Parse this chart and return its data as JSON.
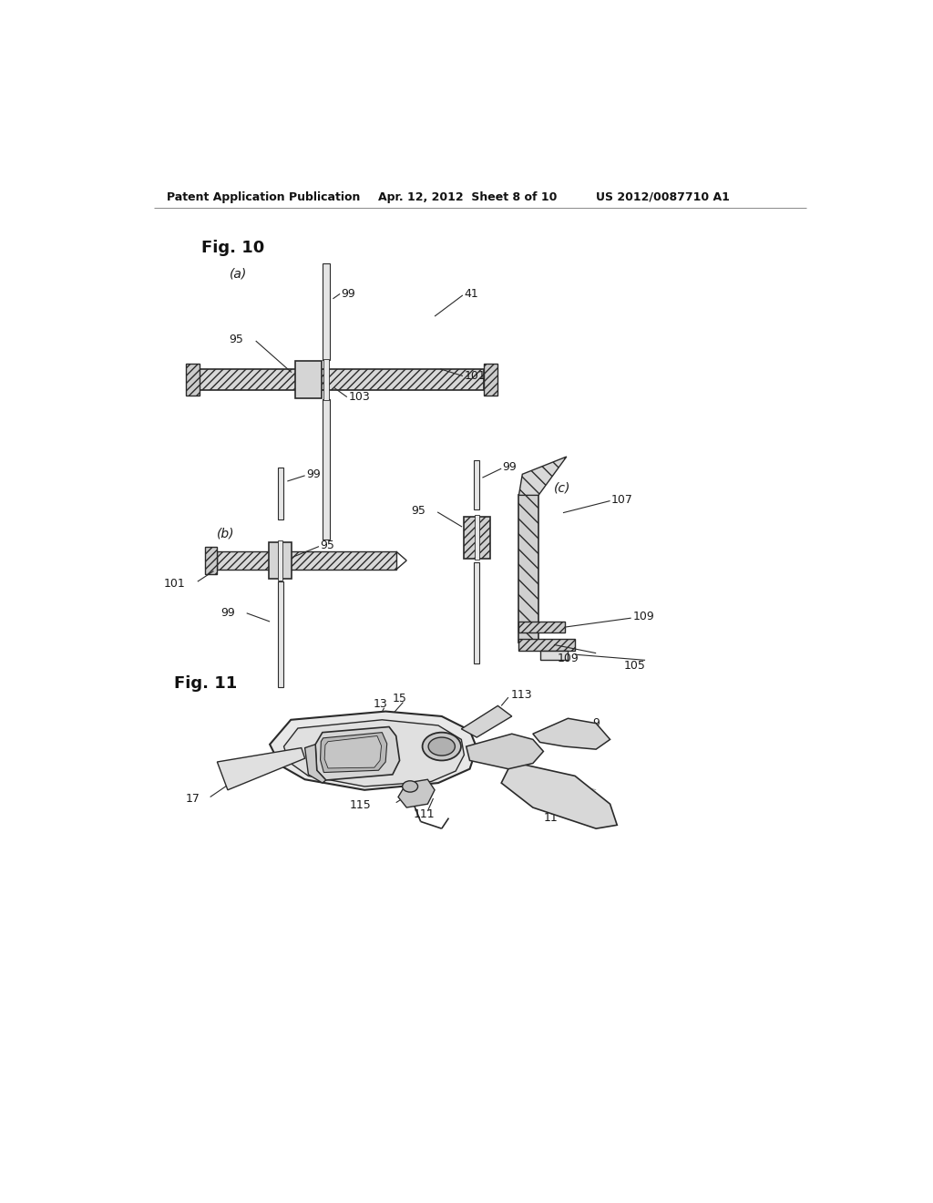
{
  "header_left": "Patent Application Publication",
  "header_center": "Apr. 12, 2012  Sheet 8 of 10",
  "header_right": "US 2012/0087710 A1",
  "fig10_label": "Fig. 10",
  "fig11_label": "Fig. 11",
  "bg_color": "#ffffff",
  "line_color": "#2a2a2a",
  "text_color": "#1a1a1a",
  "header_color": "#111111"
}
